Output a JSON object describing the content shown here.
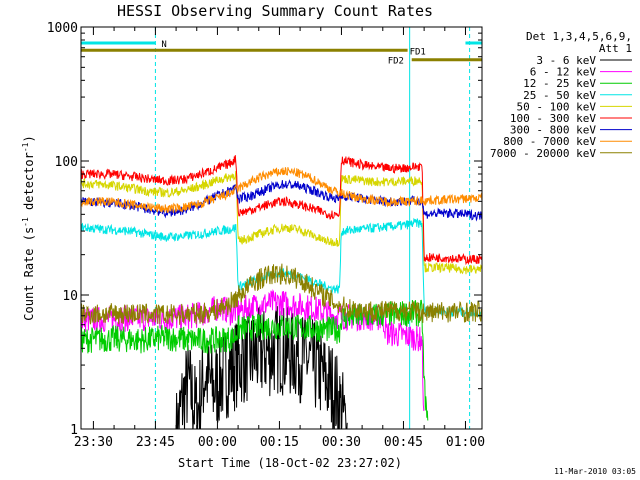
{
  "chart_data": {
    "type": "line",
    "title": "HESSI Observing Summary Count Rates",
    "xlabel": "Start Time (18-Oct-02 23:27:02)",
    "ylabel": "Count Rate (s",
    "ylabel_sup1": "-1",
    "ylabel_mid": " detector",
    "ylabel_sup2": "-1",
    "ylabel_end": ")",
    "y_scale": "log",
    "ylim": [
      1,
      1000
    ],
    "xlim_minutes_from_2330": [
      -3,
      94
    ],
    "x_ticks": [
      {
        "m": 0,
        "label": "23:30"
      },
      {
        "m": 15,
        "label": "23:45"
      },
      {
        "m": 30,
        "label": "00:00"
      },
      {
        "m": 45,
        "label": "00:15"
      },
      {
        "m": 60,
        "label": "00:30"
      },
      {
        "m": 75,
        "label": "00:45"
      },
      {
        "m": 90,
        "label": "01:00"
      }
    ],
    "y_ticks": [
      {
        "v": 1,
        "label": "1"
      },
      {
        "v": 10,
        "label": "10"
      },
      {
        "v": 100,
        "label": "100"
      },
      {
        "v": 1000,
        "label": "1000"
      }
    ],
    "legend_header": [
      "Det 1,3,4,5,6,9,",
      "Att 1"
    ],
    "legend_placement": "right",
    "series": [
      {
        "name": "3 - 6 keV",
        "color": "#000000",
        "points": [
          [
            20,
            0.9
          ],
          [
            21.5,
            1.6
          ],
          [
            23,
            2.2
          ],
          [
            25,
            1.3
          ],
          [
            27,
            2.6
          ],
          [
            29,
            2.0
          ],
          [
            31,
            2.4
          ],
          [
            33,
            2.8
          ],
          [
            35,
            3.2
          ],
          [
            37,
            3.4
          ],
          [
            40,
            3.6
          ],
          [
            43,
            3.8
          ],
          [
            45,
            4.0
          ],
          [
            48,
            3.7
          ],
          [
            51,
            3.4
          ],
          [
            53,
            3.0
          ],
          [
            55,
            2.6
          ],
          [
            58,
            2.0
          ],
          [
            60,
            1.4
          ],
          [
            61.5,
            0.9
          ]
        ]
      },
      {
        "name": "6 - 12 keV",
        "color": "#ff00ff",
        "points": [
          [
            -3,
            6.5
          ],
          [
            3,
            6.6
          ],
          [
            10,
            6.7
          ],
          [
            16,
            6.6
          ],
          [
            22,
            6.8
          ],
          [
            26,
            7.2
          ],
          [
            29,
            7.8
          ],
          [
            31,
            8.2
          ],
          [
            33,
            7.4
          ],
          [
            35,
            7.6
          ],
          [
            38,
            8.2
          ],
          [
            42,
            8.6
          ],
          [
            45,
            8.8
          ],
          [
            49,
            8.4
          ],
          [
            53,
            8.0
          ],
          [
            56,
            7.4
          ],
          [
            58,
            7.0
          ],
          [
            60,
            6.9
          ],
          [
            65,
            6.8
          ],
          [
            70,
            6.7
          ],
          [
            71,
            5.2
          ],
          [
            75,
            5.0
          ],
          [
            78,
            4.8
          ],
          [
            79.5,
            4.6
          ],
          [
            80,
            0.9
          ]
        ]
      },
      {
        "name": "12 - 25 keV",
        "color": "#00cc00",
        "points": [
          [
            -3,
            4.6
          ],
          [
            5,
            4.7
          ],
          [
            12,
            4.6
          ],
          [
            18,
            4.8
          ],
          [
            24,
            4.6
          ],
          [
            30,
            4.6
          ],
          [
            34,
            4.8
          ],
          [
            35,
            5.6
          ],
          [
            38,
            5.7
          ],
          [
            42,
            5.8
          ],
          [
            46,
            5.8
          ],
          [
            50,
            5.7
          ],
          [
            55,
            5.6
          ],
          [
            58,
            5.5
          ],
          [
            59.5,
            5.4
          ],
          [
            60,
            6.8
          ],
          [
            64,
            6.9
          ],
          [
            68,
            7.0
          ],
          [
            72,
            7.2
          ],
          [
            76,
            7.3
          ],
          [
            79.5,
            7.3
          ],
          [
            80,
            2.2
          ],
          [
            81,
            0.9
          ]
        ]
      },
      {
        "name": "25 - 50 keV",
        "color": "#00e5e5",
        "points": [
          [
            -3,
            32
          ],
          [
            2,
            31
          ],
          [
            6,
            30.5
          ],
          [
            10,
            29.5
          ],
          [
            14,
            28
          ],
          [
            18,
            27
          ],
          [
            22,
            27.5
          ],
          [
            26,
            28.5
          ],
          [
            30,
            30
          ],
          [
            33,
            31
          ],
          [
            34.5,
            32
          ],
          [
            35,
            11.5
          ],
          [
            38,
            12.5
          ],
          [
            41,
            13.5
          ],
          [
            44,
            14.3
          ],
          [
            46,
            14.6
          ],
          [
            49,
            14
          ],
          [
            52,
            13
          ],
          [
            55,
            12
          ],
          [
            57,
            11.3
          ],
          [
            59.5,
            11
          ],
          [
            60,
            30
          ],
          [
            65,
            31
          ],
          [
            70,
            32
          ],
          [
            75,
            33
          ],
          [
            78,
            34.5
          ],
          [
            79.5,
            34
          ],
          [
            80,
            7.6
          ],
          [
            83,
            7.6
          ],
          [
            87,
            7.5
          ],
          [
            94,
            7.4
          ]
        ]
      },
      {
        "name": "50 - 100 keV",
        "color": "#d6d600",
        "points": [
          [
            -3,
            68
          ],
          [
            2,
            67
          ],
          [
            6,
            65
          ],
          [
            10,
            62
          ],
          [
            14,
            59
          ],
          [
            18,
            58
          ],
          [
            22,
            60
          ],
          [
            26,
            65
          ],
          [
            30,
            72
          ],
          [
            33,
            76
          ],
          [
            34.5,
            80
          ],
          [
            35,
            25
          ],
          [
            38,
            27
          ],
          [
            41,
            29
          ],
          [
            44,
            31
          ],
          [
            46,
            32
          ],
          [
            49,
            31
          ],
          [
            52,
            29
          ],
          [
            55,
            26
          ],
          [
            57,
            25
          ],
          [
            59.5,
            25
          ],
          [
            60,
            74
          ],
          [
            64,
            72
          ],
          [
            68,
            70
          ],
          [
            72,
            70
          ],
          [
            76,
            71
          ],
          [
            79.5,
            72
          ],
          [
            80,
            16
          ],
          [
            85,
            16
          ],
          [
            90,
            15.5
          ],
          [
            94,
            15.5
          ]
        ]
      },
      {
        "name": "100 - 300 keV",
        "color": "#ff0000",
        "points": [
          [
            -3,
            80
          ],
          [
            2,
            80
          ],
          [
            6,
            79
          ],
          [
            10,
            76
          ],
          [
            14,
            73
          ],
          [
            18,
            71
          ],
          [
            22,
            73
          ],
          [
            26,
            80
          ],
          [
            30,
            88
          ],
          [
            33,
            96
          ],
          [
            34.5,
            104
          ],
          [
            35,
            41
          ],
          [
            38,
            43
          ],
          [
            41,
            46
          ],
          [
            44,
            49
          ],
          [
            46,
            50
          ],
          [
            49,
            48
          ],
          [
            52,
            45
          ],
          [
            55,
            42
          ],
          [
            57,
            40
          ],
          [
            59.5,
            40
          ],
          [
            60,
            102
          ],
          [
            64,
            95
          ],
          [
            68,
            90
          ],
          [
            72,
            88
          ],
          [
            76,
            89
          ],
          [
            79.5,
            92
          ],
          [
            80,
            19
          ],
          [
            85,
            19
          ],
          [
            90,
            18.5
          ],
          [
            94,
            18.5
          ]
        ]
      },
      {
        "name": "300 - 800 keV",
        "color": "#0000cc",
        "points": [
          [
            -3,
            50
          ],
          [
            2,
            49
          ],
          [
            6,
            48
          ],
          [
            10,
            46
          ],
          [
            14,
            43
          ],
          [
            18,
            41
          ],
          [
            22,
            43
          ],
          [
            26,
            48
          ],
          [
            30,
            55
          ],
          [
            33,
            60
          ],
          [
            34.5,
            64
          ],
          [
            35,
            52
          ],
          [
            38,
            55
          ],
          [
            41,
            60
          ],
          [
            44,
            65
          ],
          [
            46,
            67
          ],
          [
            49,
            66
          ],
          [
            52,
            62
          ],
          [
            55,
            57
          ],
          [
            57,
            54
          ],
          [
            59.5,
            52
          ],
          [
            60,
            55
          ],
          [
            64,
            53
          ],
          [
            68,
            51
          ],
          [
            72,
            50
          ],
          [
            76,
            50
          ],
          [
            79.5,
            51
          ],
          [
            80,
            40
          ],
          [
            85,
            41
          ],
          [
            90,
            40
          ],
          [
            94,
            39
          ]
        ]
      },
      {
        "name": "800 - 7000 keV",
        "color": "#ff8c00",
        "points": [
          [
            -3,
            50
          ],
          [
            2,
            50
          ],
          [
            6,
            49
          ],
          [
            10,
            47
          ],
          [
            14,
            45
          ],
          [
            18,
            44
          ],
          [
            22,
            45
          ],
          [
            26,
            48
          ],
          [
            30,
            53
          ],
          [
            33,
            57
          ],
          [
            35,
            62
          ],
          [
            38,
            70
          ],
          [
            41,
            77
          ],
          [
            44,
            82
          ],
          [
            46,
            84
          ],
          [
            49,
            82
          ],
          [
            52,
            76
          ],
          [
            55,
            68
          ],
          [
            58,
            60
          ],
          [
            62,
            55
          ],
          [
            66,
            52
          ],
          [
            70,
            50
          ],
          [
            74,
            50
          ],
          [
            78,
            50
          ],
          [
            80,
            51
          ],
          [
            84,
            51
          ],
          [
            88,
            52
          ],
          [
            94,
            53
          ]
        ]
      },
      {
        "name": "7000 - 20000 keV",
        "color": "#8b8000",
        "points": [
          [
            -3,
            7.2
          ],
          [
            3,
            7.2
          ],
          [
            8,
            7.3
          ],
          [
            13,
            7.2
          ],
          [
            18,
            7.1
          ],
          [
            22,
            7.2
          ],
          [
            26,
            7.3
          ],
          [
            29,
            7.6
          ],
          [
            33,
            8.6
          ],
          [
            36,
            10.5
          ],
          [
            39,
            12.5
          ],
          [
            42,
            14
          ],
          [
            45,
            14.5
          ],
          [
            48,
            13.8
          ],
          [
            51,
            12.5
          ],
          [
            54,
            10.8
          ],
          [
            57,
            9.3
          ],
          [
            60,
            8.2
          ],
          [
            64,
            7.8
          ],
          [
            68,
            7.6
          ],
          [
            72,
            7.6
          ],
          [
            76,
            7.7
          ],
          [
            80,
            7.4
          ],
          [
            84,
            7.5
          ],
          [
            88,
            7.5
          ],
          [
            94,
            7.5
          ]
        ]
      }
    ],
    "flag_bars": [
      {
        "label": "N",
        "color": "#00e5e5",
        "segments": [
          [
            -3,
            15
          ],
          [
            90,
            94
          ]
        ],
        "y_level": 760
      },
      {
        "label": "FD1",
        "color": "#8b8000",
        "segments": [
          [
            -3,
            76
          ]
        ],
        "y_level": 670
      },
      {
        "label": "FD2",
        "color": "#8b8000",
        "segments": [
          [
            77,
            94
          ]
        ],
        "y_level": 570
      }
    ],
    "vertical_markers": [
      {
        "m": -3,
        "color": "#00e5e5",
        "style": "solid"
      },
      {
        "m": 15,
        "color": "#00e5e5",
        "style": "dashed"
      },
      {
        "m": 76.5,
        "color": "#00e5e5",
        "style": "solid"
      },
      {
        "m": 91,
        "color": "#00e5e5",
        "style": "dashed"
      }
    ],
    "footer": "11-Mar-2010 03:05"
  }
}
